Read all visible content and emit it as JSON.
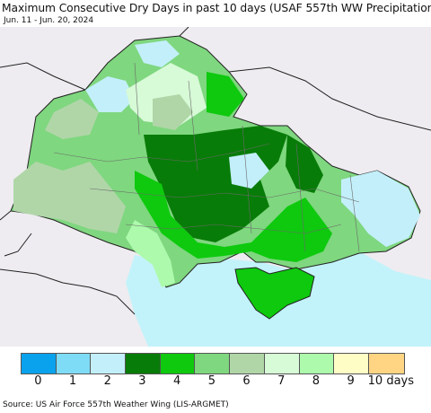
{
  "title": "Maximum Consecutive Dry Days in past 10 days (USAF 557th WW Precipitation)",
  "subtitle": "Jun. 11 - Jun. 20, 2024",
  "source": "Source: US Air Force 557th Weather Wing (LIS-ARGMET)",
  "legend": {
    "labels": [
      "0",
      "1",
      "2",
      "3",
      "4",
      "5",
      "6",
      "7",
      "8",
      "9",
      "10 days"
    ],
    "colors": [
      "#0aa2ec",
      "#7fdcf7",
      "#c3effa",
      "#087c08",
      "#0ec90e",
      "#7fd77f",
      "#b0d6a8",
      "#d7fad7",
      "#adfaad",
      "#fffdc6",
      "#ffd584"
    ]
  },
  "map_colors": {
    "sea": "#c3f3fa",
    "outside_land": "#eeecf0",
    "border": "#222222"
  }
}
